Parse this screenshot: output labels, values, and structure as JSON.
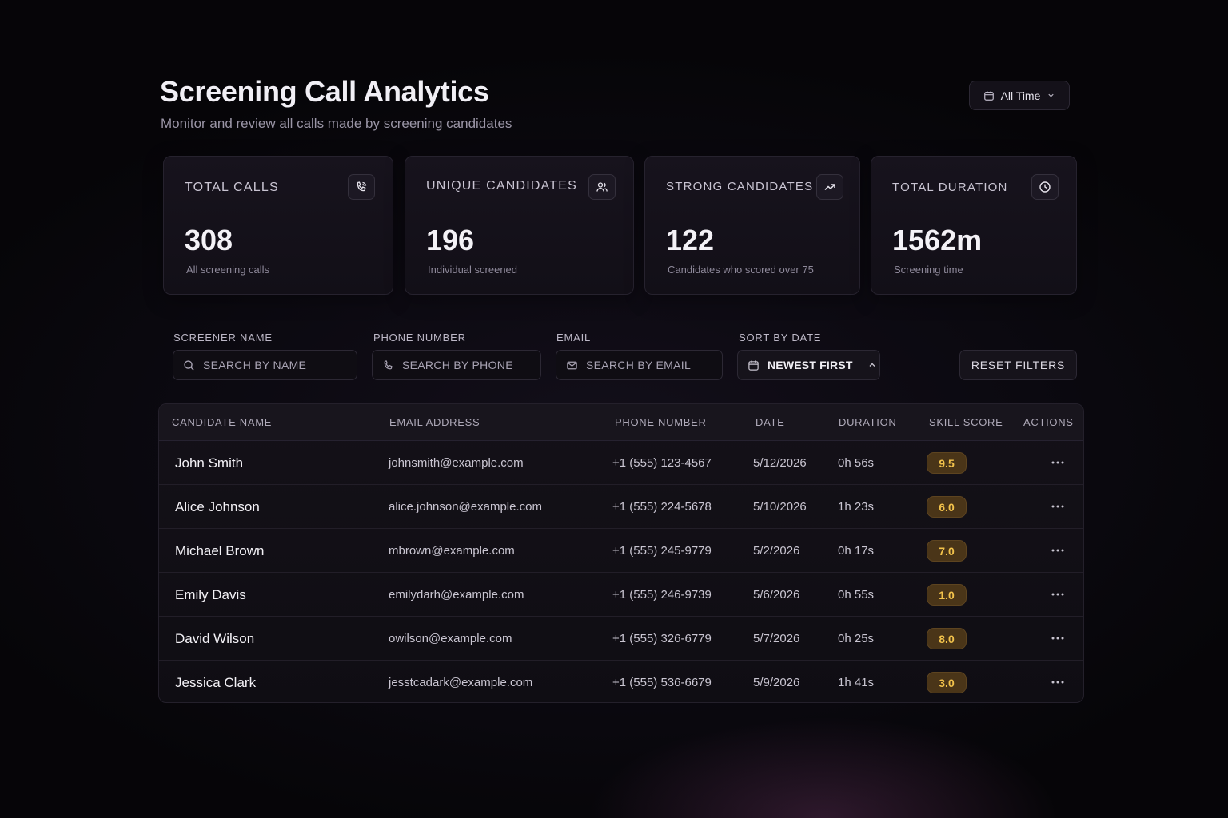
{
  "header": {
    "title": "Screening Call Analytics",
    "subtitle": "Monitor and review all calls made by screening candidates",
    "range_label": "All Time"
  },
  "stats": [
    {
      "label": "TOTAL CALLS",
      "value": "308",
      "caption": "All screening calls",
      "icon": "phone-icon"
    },
    {
      "label": "UNIQUE CANDIDATES",
      "value": "196",
      "caption": "Individual screened",
      "icon": "users-icon"
    },
    {
      "label": "STRONG CANDIDATES",
      "value": "122",
      "caption": "Candidates who scored over 75",
      "icon": "trending-up-icon"
    },
    {
      "label": "TOTAL DURATION",
      "value": "1562m",
      "caption": "Screening time",
      "icon": "clock-icon"
    }
  ],
  "filters": {
    "screener_label": "SCREENER NAME",
    "screener_placeholder": "SEARCH BY NAME",
    "phone_label": "PHONE NUMBER",
    "phone_placeholder": "SEARCH BY PHONE",
    "email_label": "EMAIL",
    "email_placeholder": "SEARCH BY EMAIL",
    "sort_label": "SORT BY DATE",
    "sort_value": "NEWEST FIRST",
    "reset_label": "RESET FILTERS"
  },
  "table": {
    "columns": [
      "CANDIDATE NAME",
      "EMAIL ADDRESS",
      "PHONE NUMBER",
      "DATE",
      "DURATION",
      "SKILL SCORE",
      "ACTIONS"
    ],
    "rows": [
      {
        "name": "John Smith",
        "email": "johnsmith@example.com",
        "phone": "+1 (555) 123-4567",
        "date": "5/12/2026",
        "duration": "0h 56s",
        "score": "9.5"
      },
      {
        "name": "Alice Johnson",
        "email": "alice.johnson@example.com",
        "phone": "+1 (555) 224-5678",
        "date": "5/10/2026",
        "duration": "1h 23s",
        "score": "6.0"
      },
      {
        "name": "Michael Brown",
        "email": "mbrown@example.com",
        "phone": "+1 (555) 245-9779",
        "date": "5/2/2026",
        "duration": "0h 17s",
        "score": "7.0"
      },
      {
        "name": "Emily Davis",
        "email": "emilydarh@example.com",
        "phone": "+1 (555) 246-9739",
        "date": "5/6/2026",
        "duration": "0h 55s",
        "score": "1.0"
      },
      {
        "name": "David Wilson",
        "email": "owilson@example.com",
        "phone": "+1 (555) 326-6779",
        "date": "5/7/2026",
        "duration": "0h 25s",
        "score": "8.0"
      },
      {
        "name": "Jessica Clark",
        "email": "jesstcadark@example.com",
        "phone": "+1 (555) 536-6679",
        "date": "5/9/2026",
        "duration": "1h 41s",
        "score": "3.0"
      }
    ]
  },
  "colors": {
    "background": "#0b0910",
    "card": "#17131d",
    "score_badge": "#4a3518",
    "score_text": "#f2c24b"
  }
}
